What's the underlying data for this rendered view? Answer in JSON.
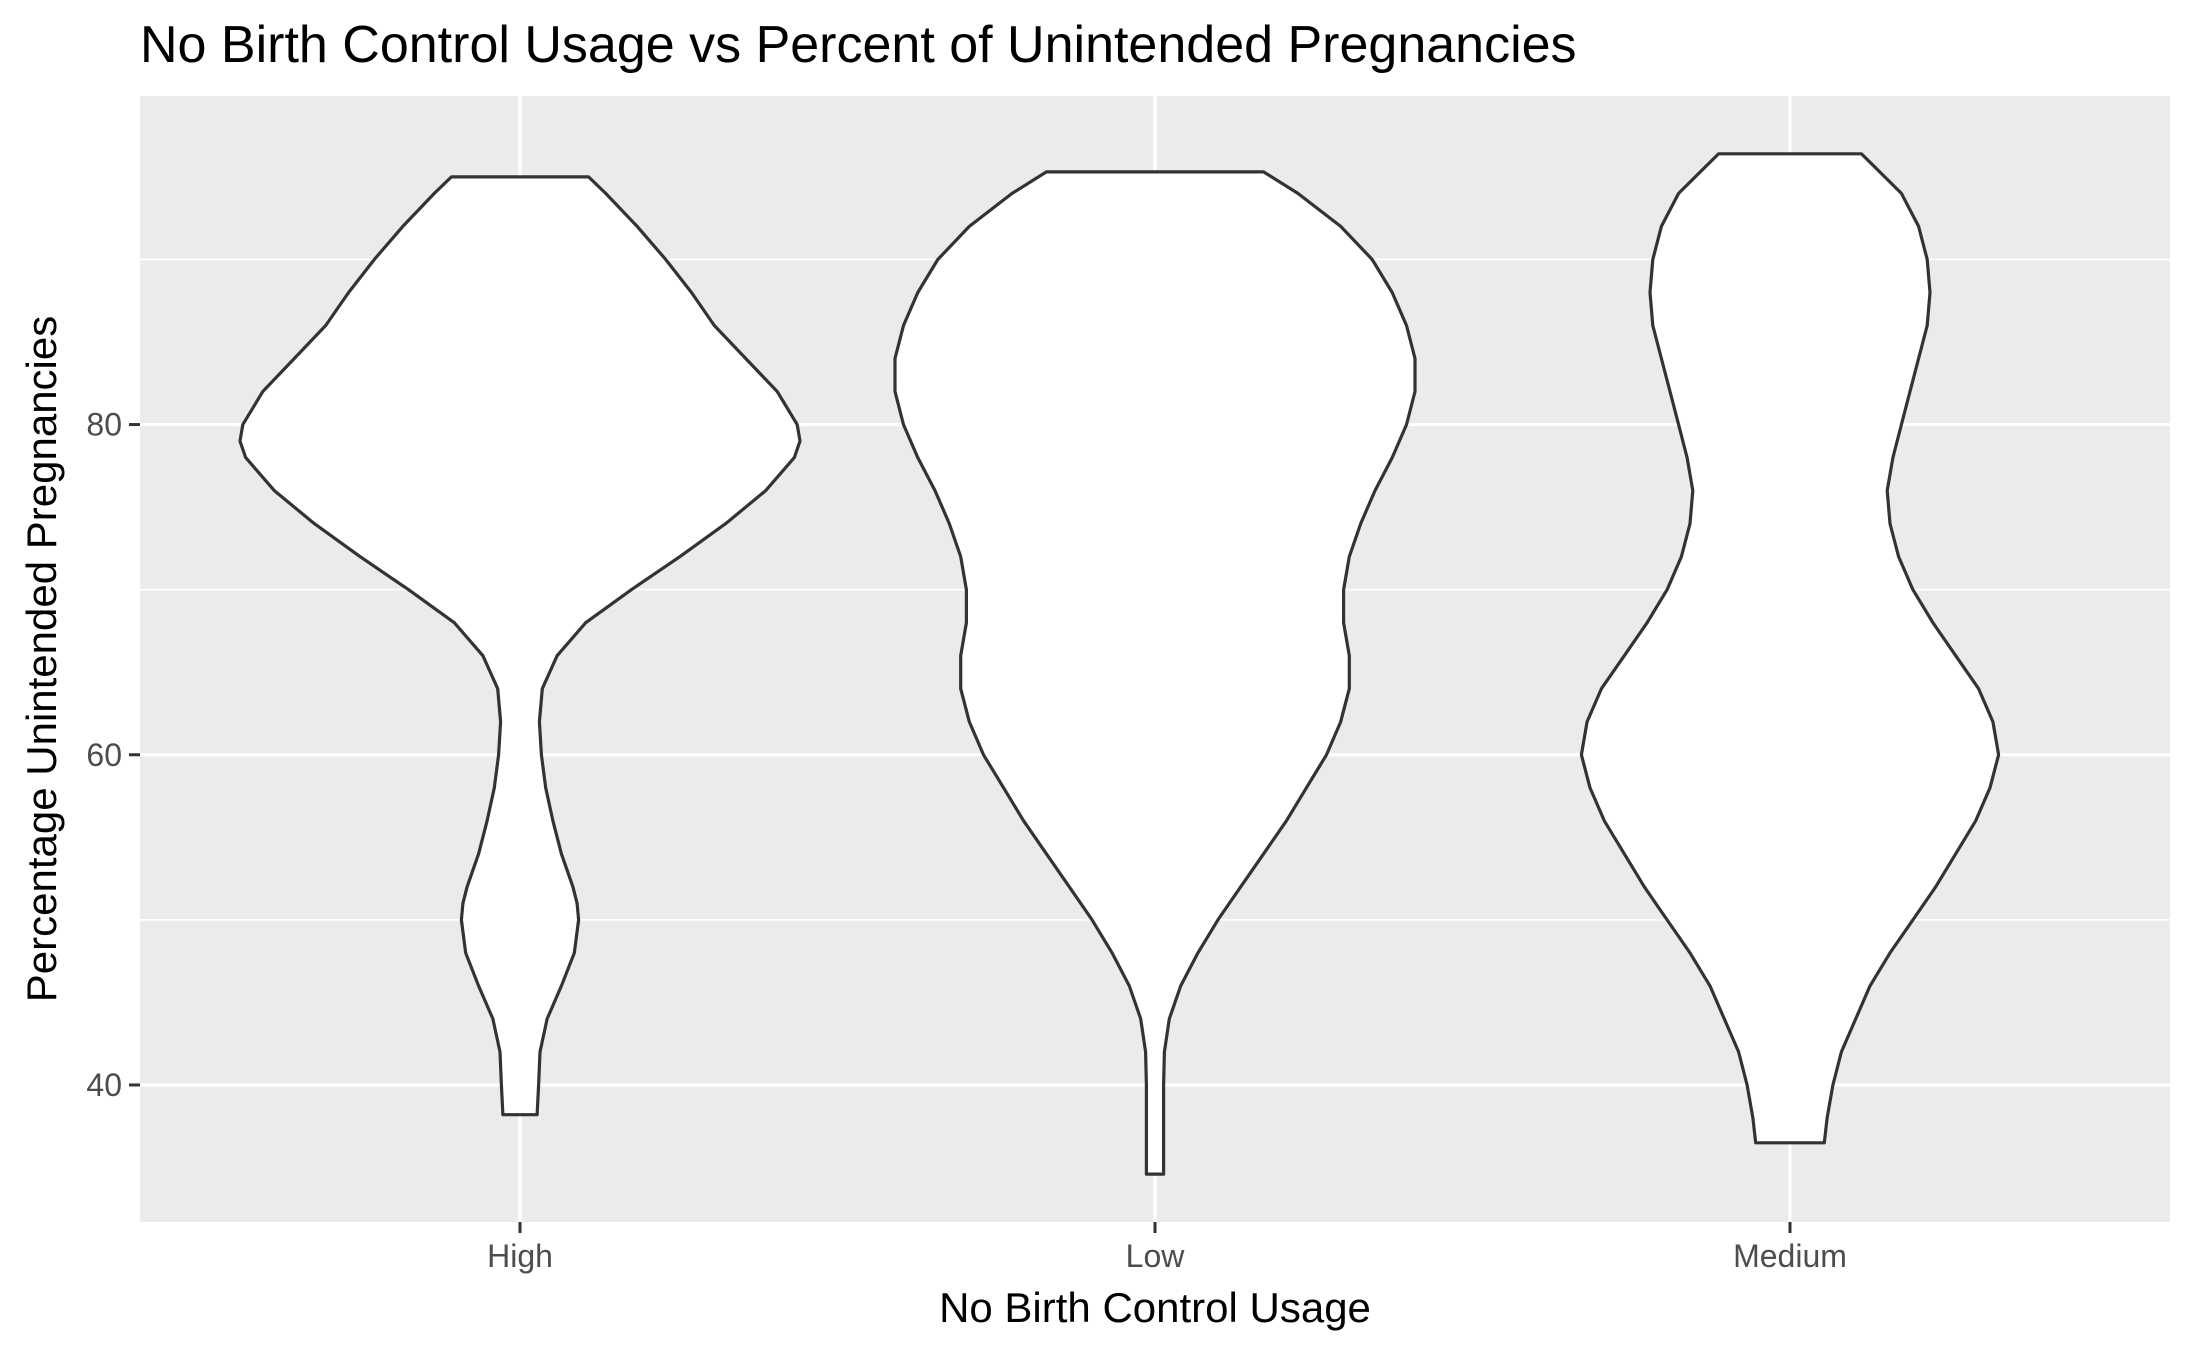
{
  "chart_data": {
    "type": "violin",
    "title": "No Birth Control Usage vs Percent of Unintended Pregnancies",
    "xlabel": "No Birth Control Usage",
    "ylabel": "Percentage Unintended Pregnancies",
    "categories": [
      "High",
      "Low",
      "Medium"
    ],
    "yticks": [
      40,
      60,
      80
    ],
    "ylim": [
      31.7,
      99.9
    ],
    "grid": true,
    "background": "#ebebeb",
    "gridline_color": "#ffffff",
    "outline_color": "#333333",
    "fill_color": "#ffffff",
    "violins": [
      {
        "category": "High",
        "range": [
          38.2,
          95.0
        ],
        "profile": [
          [
            38.2,
            0.06
          ],
          [
            40.0,
            0.065
          ],
          [
            42.0,
            0.07
          ],
          [
            44.0,
            0.095
          ],
          [
            46.0,
            0.145
          ],
          [
            48.0,
            0.19
          ],
          [
            50.0,
            0.205
          ],
          [
            51.0,
            0.2
          ],
          [
            52.0,
            0.185
          ],
          [
            54.0,
            0.145
          ],
          [
            56.0,
            0.115
          ],
          [
            58.0,
            0.09
          ],
          [
            60.0,
            0.075
          ],
          [
            62.0,
            0.068
          ],
          [
            64.0,
            0.078
          ],
          [
            66.0,
            0.13
          ],
          [
            68.0,
            0.23
          ],
          [
            70.0,
            0.39
          ],
          [
            72.0,
            0.56
          ],
          [
            74.0,
            0.72
          ],
          [
            76.0,
            0.86
          ],
          [
            78.0,
            0.96
          ],
          [
            79.0,
            0.98
          ],
          [
            80.0,
            0.97
          ],
          [
            82.0,
            0.9
          ],
          [
            84.0,
            0.79
          ],
          [
            86.0,
            0.68
          ],
          [
            88.0,
            0.6
          ],
          [
            90.0,
            0.51
          ],
          [
            92.0,
            0.41
          ],
          [
            94.0,
            0.3
          ],
          [
            95.0,
            0.24
          ]
        ]
      },
      {
        "category": "Low",
        "range": [
          34.6,
          95.3
        ],
        "profile": [
          [
            34.6,
            0.03
          ],
          [
            37.0,
            0.03
          ],
          [
            40.0,
            0.03
          ],
          [
            42.0,
            0.033
          ],
          [
            44.0,
            0.05
          ],
          [
            46.0,
            0.09
          ],
          [
            48.0,
            0.15
          ],
          [
            50.0,
            0.22
          ],
          [
            52.0,
            0.3
          ],
          [
            54.0,
            0.38
          ],
          [
            56.0,
            0.46
          ],
          [
            58.0,
            0.53
          ],
          [
            60.0,
            0.6
          ],
          [
            62.0,
            0.65
          ],
          [
            64.0,
            0.68
          ],
          [
            66.0,
            0.68
          ],
          [
            68.0,
            0.66
          ],
          [
            70.0,
            0.66
          ],
          [
            72.0,
            0.68
          ],
          [
            74.0,
            0.72
          ],
          [
            76.0,
            0.77
          ],
          [
            78.0,
            0.83
          ],
          [
            80.0,
            0.88
          ],
          [
            82.0,
            0.91
          ],
          [
            84.0,
            0.91
          ],
          [
            86.0,
            0.88
          ],
          [
            88.0,
            0.83
          ],
          [
            90.0,
            0.76
          ],
          [
            92.0,
            0.65
          ],
          [
            94.0,
            0.5
          ],
          [
            95.3,
            0.38
          ]
        ]
      },
      {
        "category": "Medium",
        "range": [
          36.5,
          96.4
        ],
        "profile": [
          [
            36.5,
            0.12
          ],
          [
            38.0,
            0.13
          ],
          [
            40.0,
            0.15
          ],
          [
            42.0,
            0.18
          ],
          [
            44.0,
            0.23
          ],
          [
            46.0,
            0.28
          ],
          [
            48.0,
            0.35
          ],
          [
            50.0,
            0.43
          ],
          [
            52.0,
            0.51
          ],
          [
            54.0,
            0.58
          ],
          [
            56.0,
            0.65
          ],
          [
            58.0,
            0.7
          ],
          [
            60.0,
            0.73
          ],
          [
            62.0,
            0.71
          ],
          [
            64.0,
            0.66
          ],
          [
            66.0,
            0.58
          ],
          [
            68.0,
            0.5
          ],
          [
            70.0,
            0.43
          ],
          [
            72.0,
            0.38
          ],
          [
            74.0,
            0.35
          ],
          [
            76.0,
            0.34
          ],
          [
            78.0,
            0.36
          ],
          [
            80.0,
            0.39
          ],
          [
            82.0,
            0.42
          ],
          [
            84.0,
            0.45
          ],
          [
            86.0,
            0.48
          ],
          [
            88.0,
            0.49
          ],
          [
            90.0,
            0.48
          ],
          [
            92.0,
            0.45
          ],
          [
            94.0,
            0.39
          ],
          [
            96.4,
            0.25
          ]
        ]
      }
    ]
  }
}
